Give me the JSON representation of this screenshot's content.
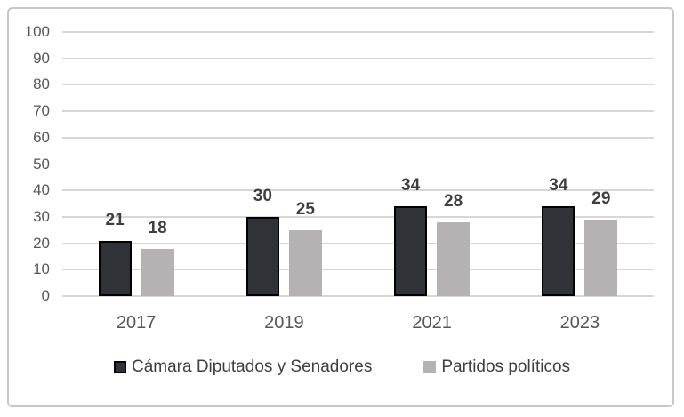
{
  "chart_data": {
    "type": "bar",
    "title": "",
    "categories": [
      "2017",
      "2019",
      "2021",
      "2023"
    ],
    "series": [
      {
        "name": "Cámara Diputados y Senadores",
        "values": [
          21,
          30,
          34,
          34
        ],
        "fill": "#2f3338",
        "border": "#000000"
      },
      {
        "name": "Partidos políticos",
        "values": [
          18,
          25,
          28,
          29
        ],
        "fill": "#b4b2b2",
        "border": "#b4b2b2"
      }
    ],
    "xlabel": "",
    "ylabel": "",
    "ylim": [
      0,
      100
    ],
    "yticks": [
      0,
      10,
      20,
      30,
      40,
      50,
      60,
      70,
      80,
      90,
      100
    ],
    "grid": "horizontal",
    "gridline_color": "#d7d7d7",
    "frame_border_color": "#c7c7c7",
    "axis_text_color": "#565656",
    "data_label_color": "#3f3f3f",
    "data_labels": true,
    "legend_position": "bottom"
  }
}
